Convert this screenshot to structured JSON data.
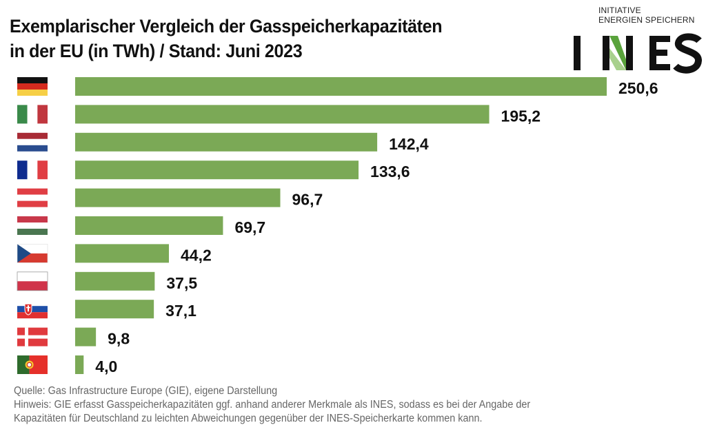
{
  "header": {
    "title_line1": "Exemplarischer Vergleich der Gasspeicherkapazitäten",
    "title_line2": "in der EU (in TWh) / Stand: Juni 2023"
  },
  "logo": {
    "tagline_line1": "INITIATIVE",
    "tagline_line2": "ENERGIEN SPEICHERN",
    "wordmark": "INES",
    "accent_color": "#5aa33c"
  },
  "colors": {
    "bar": "#7ba956",
    "label": "#111111"
  },
  "chart_data": {
    "type": "bar",
    "orientation": "horizontal",
    "title": "Exemplarischer Vergleich der Gasspeicherkapazitäten in der EU (in TWh) / Stand: Juni 2023",
    "xlabel": "",
    "ylabel": "",
    "unit": "TWh",
    "xlim": [
      0,
      250.6
    ],
    "grid": false,
    "legend": "none",
    "categories": [
      "Germany",
      "Italy",
      "Netherlands",
      "France",
      "Austria",
      "Hungary",
      "Czech Republic",
      "Poland",
      "Slovakia",
      "Denmark",
      "Portugal"
    ],
    "category_icons": [
      "flag-germany",
      "flag-italy",
      "flag-netherlands",
      "flag-france",
      "flag-austria",
      "flag-hungary",
      "flag-czech-republic",
      "flag-poland",
      "flag-slovakia",
      "flag-denmark",
      "flag-portugal"
    ],
    "values": [
      250.6,
      195.2,
      142.4,
      133.6,
      96.7,
      69.7,
      44.2,
      37.5,
      37.1,
      9.8,
      4.0
    ],
    "value_labels": [
      "250,6",
      "195,2",
      "142,4",
      "133,6",
      "96,7",
      "69,7",
      "44,2",
      "37,5",
      "37,1",
      "9,8",
      "4,0"
    ]
  },
  "footer": {
    "source": "Quelle: Gas Infrastructure Europe (GIE), eigene Darstellung",
    "note_line1": "Hinweis: GIE erfasst Gasspeicherkapazitäten ggf. anhand anderer Merkmale als INES, sodass es bei der Angabe der",
    "note_line2": "Kapazitäten für Deutschland zu leichten Abweichungen gegenüber der INES-Speicherkarte kommen kann."
  }
}
